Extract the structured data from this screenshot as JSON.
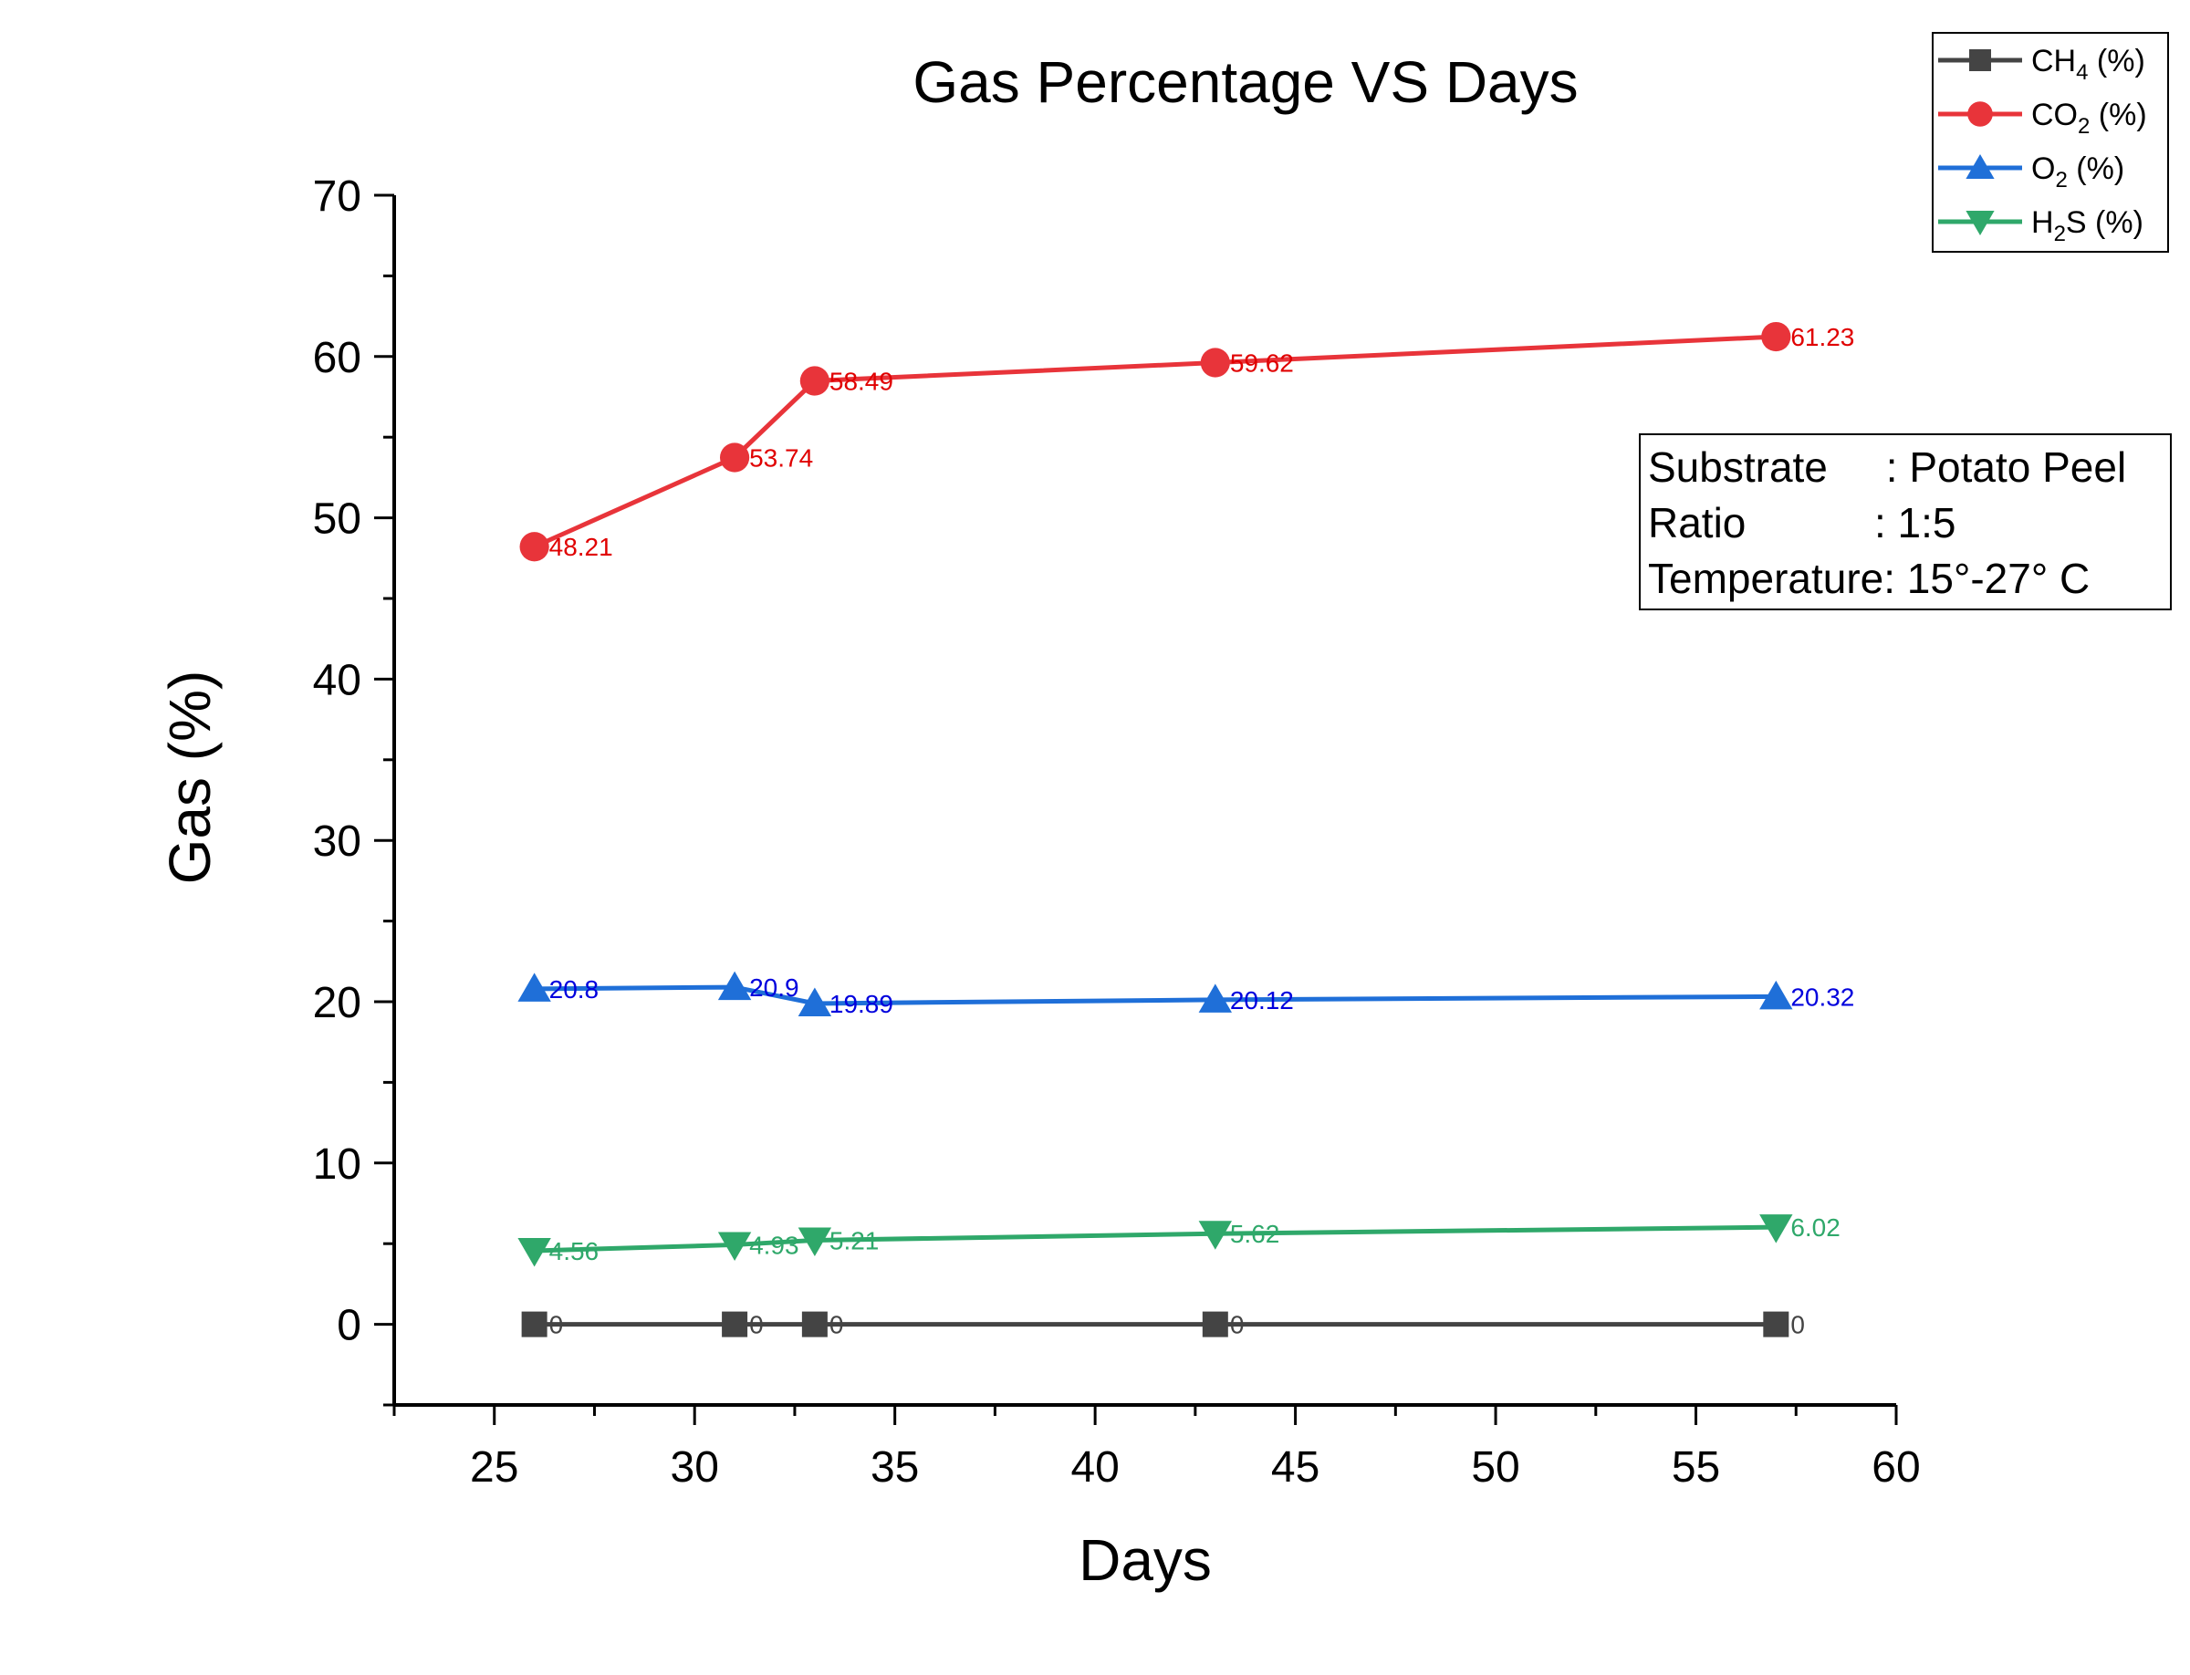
{
  "chart_data": {
    "type": "line",
    "title": "Gas Percentage VS Days",
    "xlabel": "Days",
    "ylabel": "Gas (%)",
    "xlim": [
      22.5,
      60
    ],
    "ylim": [
      -5,
      70
    ],
    "x_ticks": [
      25,
      30,
      35,
      40,
      45,
      50,
      55,
      60
    ],
    "y_ticks": [
      0,
      10,
      20,
      30,
      40,
      50,
      60,
      70
    ],
    "x": [
      26,
      31,
      33,
      43,
      57
    ],
    "grid": false,
    "legend_position": "top-right",
    "series": [
      {
        "name_main": "CH",
        "name_sub": "4",
        "name_rest": " (%)",
        "marker": "square",
        "color": "#444444",
        "label_color": "#444444",
        "values": [
          0,
          0,
          0,
          0,
          0
        ],
        "labels": [
          "0",
          "0",
          "0",
          "0",
          "0"
        ]
      },
      {
        "name_main": "CO",
        "name_sub": "2",
        "name_rest": " (%)",
        "marker": "circle",
        "color": "#e8343a",
        "label_color": "#e00000",
        "values": [
          48.21,
          53.74,
          58.49,
          59.62,
          61.23
        ],
        "labels": [
          "48.21",
          "53.74",
          "58.49",
          "59.62",
          "61.23"
        ]
      },
      {
        "name_main": "O",
        "name_sub": "2",
        "name_rest": " (%)",
        "marker": "triangle-up",
        "color": "#1f6fd8",
        "label_color": "#0000dd",
        "values": [
          20.8,
          20.9,
          19.89,
          20.12,
          20.32
        ],
        "labels": [
          "20.8",
          "20.9",
          "19.89",
          "20.12",
          "20.32"
        ]
      },
      {
        "name_main": "H",
        "name_sub": "2",
        "name_rest": "S (%)",
        "marker": "triangle-down",
        "color": "#2fa86a",
        "label_color": "#2fa86a",
        "values": [
          4.56,
          4.93,
          5.21,
          5.62,
          6.02
        ],
        "labels": [
          "4.56",
          "4.93",
          "5.21",
          "5.62",
          "6.02"
        ]
      }
    ],
    "annotation": {
      "lines": [
        "Substrate     : Potato Peel",
        "Ratio           : 1:5",
        "Temperature: 15°-27° C"
      ]
    }
  }
}
